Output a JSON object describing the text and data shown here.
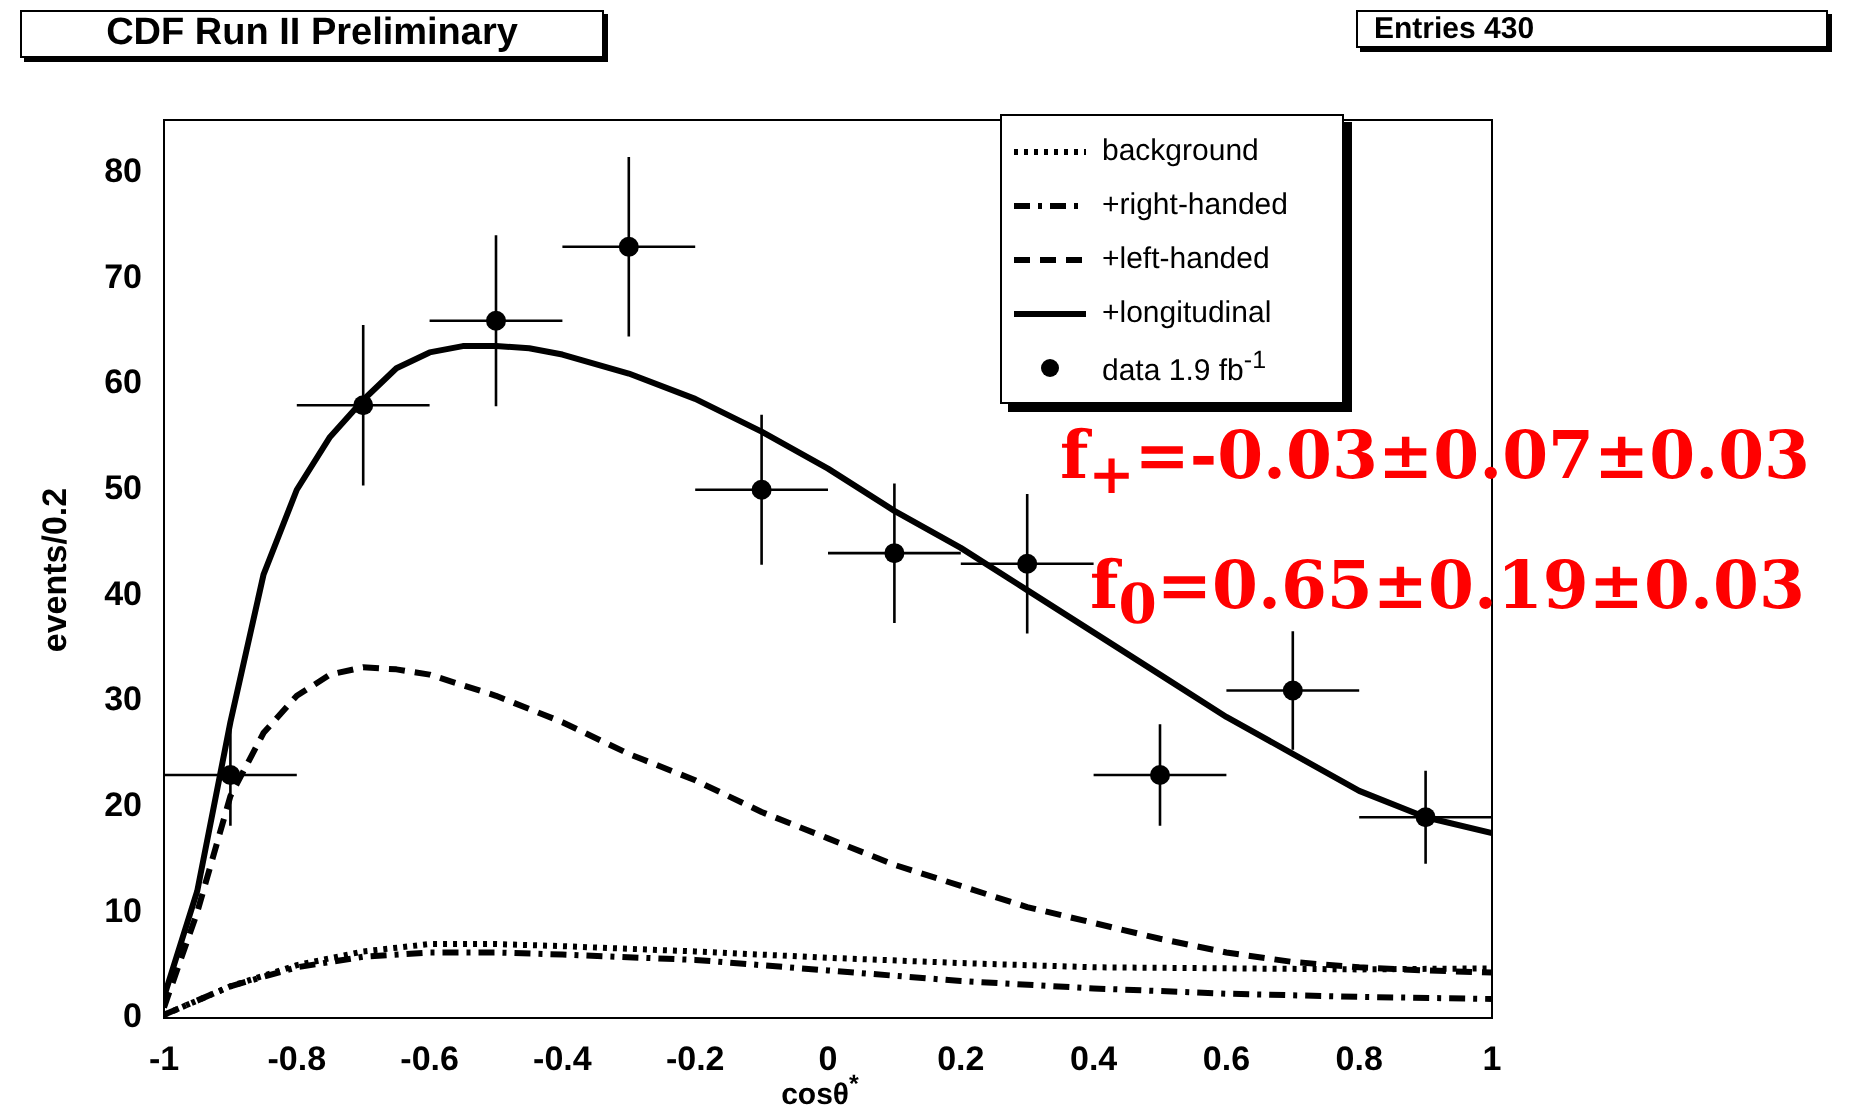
{
  "chart_data": {
    "type": "line",
    "title": "CDF Run II Preliminary",
    "xlabel": "cosθ$^{*}$",
    "ylabel": "events/0.2",
    "annotations": [
      "Entries 430",
      "f$_{+}$=-0.03±0.07±0.03",
      "f$_{0}$=0.65±0.19±0.03"
    ],
    "xlim": [
      -1,
      1
    ],
    "xticks": [
      -1,
      -0.8,
      -0.6,
      -0.4,
      -0.2,
      0,
      0.2,
      0.4,
      0.6,
      0.8,
      1
    ],
    "ylim": [
      0,
      85
    ],
    "yticks": [
      0,
      10,
      20,
      30,
      40,
      50,
      60,
      70,
      80
    ],
    "grid": false,
    "legend": "top right",
    "series": [
      {
        "name": "background",
        "color": "#000000",
        "line_style": "dotted",
        "marker": "none",
        "x": [
          -1,
          -0.9,
          -0.8,
          -0.7,
          -0.6,
          -0.5,
          -0.4,
          -0.2,
          0,
          0.2,
          0.4,
          0.6,
          0.8,
          1
        ],
        "values": [
          0.3,
          3,
          5,
          6.3,
          7,
          7,
          6.8,
          6.3,
          5.7,
          5.2,
          4.8,
          4.7,
          4.6,
          4.7
        ]
      },
      {
        "name": "+right-handed",
        "color": "#000000",
        "line_style": "dashdot",
        "marker": "none",
        "x": [
          -1,
          -0.9,
          -0.8,
          -0.7,
          -0.6,
          -0.5,
          -0.4,
          -0.2,
          0,
          0.2,
          0.4,
          0.6,
          0.8,
          1
        ],
        "values": [
          0.3,
          3,
          4.8,
          5.8,
          6.2,
          6.2,
          6,
          5.5,
          4.5,
          3.5,
          2.8,
          2.3,
          2,
          1.8
        ]
      },
      {
        "name": "+left-handed",
        "color": "#000000",
        "line_style": "dashed",
        "marker": "none",
        "x": [
          -1,
          -0.95,
          -0.9,
          -0.85,
          -0.8,
          -0.75,
          -0.7,
          -0.65,
          -0.6,
          -0.5,
          -0.4,
          -0.3,
          -0.2,
          -0.1,
          0,
          0.1,
          0.2,
          0.3,
          0.4,
          0.5,
          0.6,
          0.7,
          0.8,
          0.9,
          1
        ],
        "values": [
          1,
          10,
          21,
          27,
          30.5,
          32.5,
          33.2,
          33,
          32.5,
          30.5,
          28,
          25,
          22.5,
          19.5,
          17,
          14.5,
          12.5,
          10.5,
          9,
          7.5,
          6.2,
          5.3,
          4.8,
          4.5,
          4.3
        ]
      },
      {
        "name": "+longitudinal",
        "color": "#000000",
        "line_style": "solid",
        "marker": "none",
        "x": [
          -1,
          -0.95,
          -0.9,
          -0.85,
          -0.8,
          -0.75,
          -0.7,
          -0.65,
          -0.6,
          -0.55,
          -0.5,
          -0.45,
          -0.4,
          -0.3,
          -0.2,
          -0.1,
          0,
          0.1,
          0.2,
          0.3,
          0.4,
          0.5,
          0.6,
          0.7,
          0.8,
          0.9,
          1
        ],
        "values": [
          2,
          12,
          28,
          42,
          50,
          55,
          58.5,
          61.5,
          63,
          63.6,
          63.6,
          63.4,
          62.8,
          61,
          58.6,
          55.5,
          52,
          48,
          44.5,
          40.5,
          36.5,
          32.5,
          28.5,
          25,
          21.5,
          19,
          17.5
        ]
      },
      {
        "name": "data 1.9 fb$^{-1}$",
        "type": "scatter",
        "color": "#000000",
        "marker": "circle",
        "x": [
          -0.9,
          -0.7,
          -0.5,
          -0.3,
          -0.1,
          0.1,
          0.3,
          0.5,
          0.7,
          0.9
        ],
        "values": [
          23,
          58,
          66,
          73,
          50,
          44,
          43,
          23,
          31,
          19
        ],
        "errors": [
          4.8,
          7.6,
          8.1,
          8.5,
          7.1,
          6.6,
          6.6,
          4.8,
          5.6,
          4.4
        ],
        "xerrors": [
          0.1,
          0.1,
          0.1,
          0.1,
          0.1,
          0.1,
          0.1,
          0.1,
          0.1,
          0.1
        ]
      }
    ]
  }
}
